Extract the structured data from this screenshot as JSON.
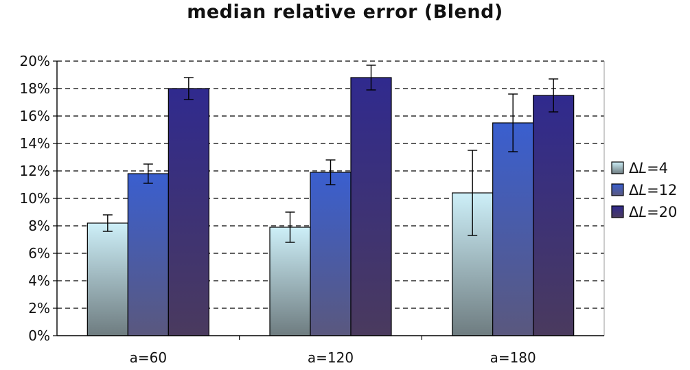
{
  "chart_data": {
    "type": "bar",
    "title": "median relative error (Blend)",
    "xlabel": "",
    "ylabel": "",
    "categories": [
      "a=60",
      "a=120",
      "a=180"
    ],
    "ylim": [
      0,
      20
    ],
    "y_ticks": [
      "0%",
      "2%",
      "4%",
      "6%",
      "8%",
      "10%",
      "12%",
      "14%",
      "16%",
      "18%",
      "20%"
    ],
    "grid": "horizontal dashed",
    "legend_position": "right",
    "series": [
      {
        "name": "ΔL=4",
        "symbol": "Δ",
        "var": "L",
        "eq": "=4",
        "values": [
          8.2,
          7.9,
          10.4
        ],
        "error": [
          [
            7.6,
            8.8
          ],
          [
            6.8,
            9.0
          ],
          [
            7.3,
            13.5
          ]
        ],
        "colors": [
          "#cdeff8",
          "#6e7c80"
        ]
      },
      {
        "name": "ΔL=12",
        "symbol": "Δ",
        "var": "L",
        "eq": "=12",
        "values": [
          11.8,
          11.9,
          15.5
        ],
        "error": [
          [
            11.1,
            12.5
          ],
          [
            11.0,
            12.8
          ],
          [
            13.4,
            17.6
          ]
        ],
        "colors": [
          "#3a5fcf",
          "#5a587e"
        ]
      },
      {
        "name": "ΔL=20",
        "symbol": "Δ",
        "var": "L",
        "eq": "=20",
        "values": [
          18.0,
          18.8,
          17.5
        ],
        "error": [
          [
            17.2,
            18.8
          ],
          [
            17.9,
            19.7
          ],
          [
            16.3,
            18.7
          ]
        ],
        "colors": [
          "#302a8e",
          "#4a3a5e"
        ]
      }
    ]
  }
}
